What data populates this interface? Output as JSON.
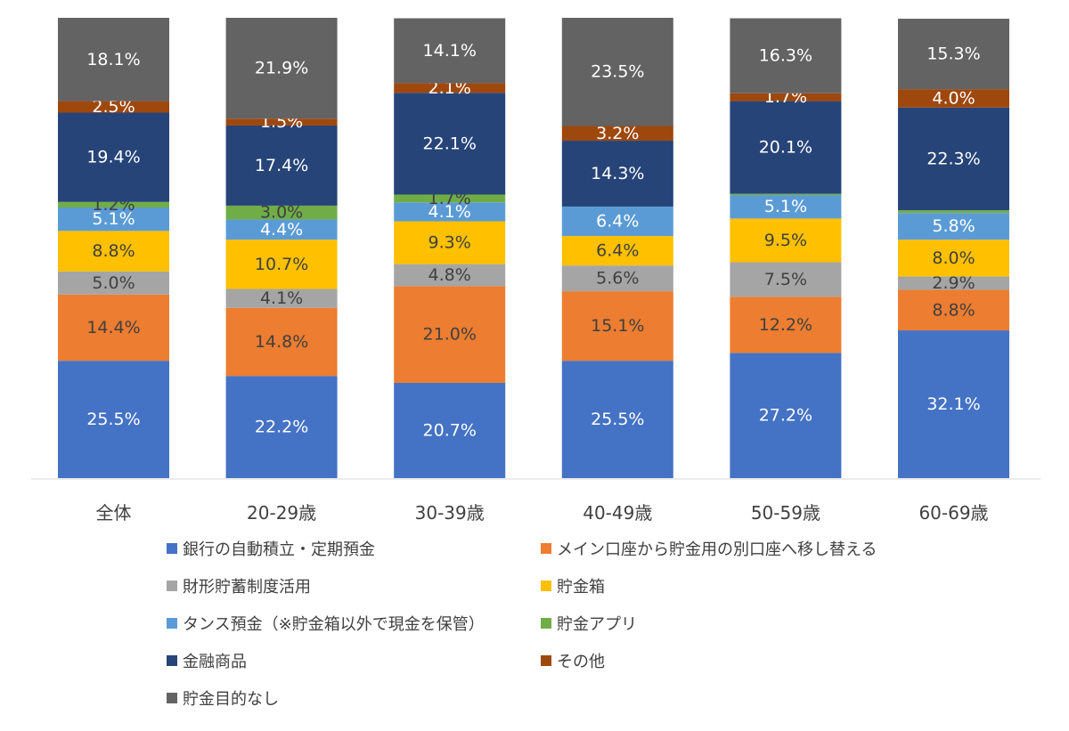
{
  "chart_data": {
    "type": "bar",
    "stacked": true,
    "percent_stacked": true,
    "categories": [
      "全体",
      "20-29歳",
      "30-39歳",
      "40-49歳",
      "50-59歳",
      "60-69歳"
    ],
    "series": [
      {
        "name": "銀行の自動積立・定期預金",
        "color": "#4472C4",
        "label_color": "#FFFFFF",
        "values": [
          25.5,
          22.2,
          20.7,
          25.5,
          27.2,
          32.1
        ],
        "labels": [
          "25.5%",
          "22.2%",
          "20.7%",
          "25.5%",
          "27.2%",
          "32.1%"
        ]
      },
      {
        "name": "メイン口座から貯金用の別口座へ移し替える",
        "color": "#ED7D31",
        "label_color": "#404040",
        "values": [
          14.4,
          14.8,
          21.0,
          15.1,
          12.2,
          8.8
        ],
        "labels": [
          "14.4%",
          "14.8%",
          "21.0%",
          "15.1%",
          "12.2%",
          "8.8%"
        ]
      },
      {
        "name": "財形貯蓄制度活用",
        "color": "#A5A5A5",
        "label_color": "#404040",
        "values": [
          5.0,
          4.1,
          4.8,
          5.6,
          7.5,
          2.9
        ],
        "labels": [
          "5.0%",
          "4.1%",
          "4.8%",
          "5.6%",
          "7.5%",
          "2.9%"
        ]
      },
      {
        "name": "貯金箱",
        "color": "#FFC000",
        "label_color": "#404040",
        "values": [
          8.8,
          10.7,
          9.3,
          6.4,
          9.5,
          8.0
        ],
        "labels": [
          "8.8%",
          "10.7%",
          "9.3%",
          "6.4%",
          "9.5%",
          "8.0%"
        ]
      },
      {
        "name": "タンス預金（※貯金箱以外で現金を保管）",
        "color": "#5B9BD5",
        "label_color": "#FFFFFF",
        "values": [
          5.1,
          4.4,
          4.1,
          6.4,
          5.1,
          5.8
        ],
        "labels": [
          "5.1%",
          "4.4%",
          "4.1%",
          "6.4%",
          "5.1%",
          "5.8%"
        ]
      },
      {
        "name": "貯金アプリ",
        "color": "#70AD47",
        "label_color": "#404040",
        "values": [
          1.2,
          3.0,
          1.7,
          0.0,
          0.3,
          0.6
        ],
        "labels": [
          "1.2%",
          "3.0%",
          "1.7%",
          "",
          "",
          ""
        ]
      },
      {
        "name": "金融商品",
        "color": "#264478",
        "label_color": "#FFFFFF",
        "values": [
          19.4,
          17.4,
          22.1,
          14.3,
          20.1,
          22.3
        ],
        "labels": [
          "19.4%",
          "17.4%",
          "22.1%",
          "14.3%",
          "20.1%",
          "22.3%"
        ]
      },
      {
        "name": "その他",
        "color": "#9E480E",
        "label_color": "#FFFFFF",
        "values": [
          2.5,
          1.5,
          2.1,
          3.2,
          1.7,
          4.0
        ],
        "labels": [
          "2.5%",
          "1.5%",
          "2.1%",
          "3.2%",
          "1.7%",
          "4.0%"
        ]
      },
      {
        "name": "貯金目的なし",
        "color": "#636363",
        "label_color": "#FFFFFF",
        "values": [
          18.1,
          21.9,
          14.1,
          23.5,
          16.3,
          15.3
        ],
        "labels": [
          "18.1%",
          "21.9%",
          "14.1%",
          "23.5%",
          "16.3%",
          "15.3%"
        ]
      }
    ],
    "ylim": [
      0,
      100
    ],
    "grid": false,
    "legend_position": "bottom"
  },
  "legend": {
    "items": [
      {
        "label": "銀行の自動積立・定期預金",
        "color": "#4472C4"
      },
      {
        "label": "メイン口座から貯金用の別口座へ移し替える",
        "color": "#ED7D31"
      },
      {
        "label": "財形貯蓄制度活用",
        "color": "#A5A5A5"
      },
      {
        "label": "貯金箱",
        "color": "#FFC000"
      },
      {
        "label": "タンス預金（※貯金箱以外で現金を保管）",
        "color": "#5B9BD5"
      },
      {
        "label": "貯金アプリ",
        "color": "#70AD47"
      },
      {
        "label": "金融商品",
        "color": "#264478"
      },
      {
        "label": "その他",
        "color": "#9E480E"
      },
      {
        "label": "貯金目的なし",
        "color": "#636363"
      }
    ]
  }
}
